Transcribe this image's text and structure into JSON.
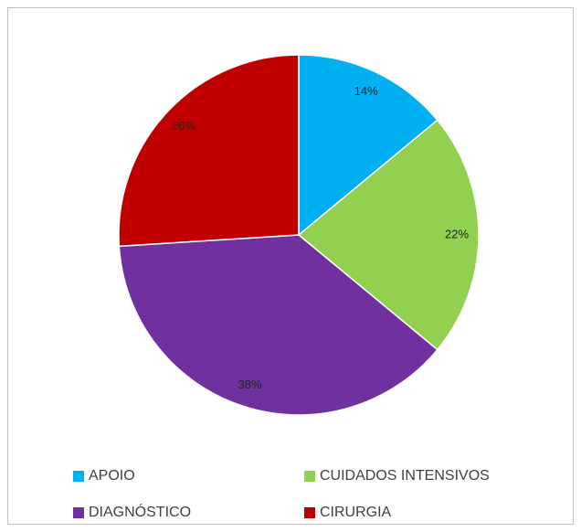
{
  "chart_data": {
    "type": "pie",
    "categories": [
      "APOIO",
      "CUIDADOS INTENSIVOS",
      "DIAGNÓSTICO",
      "CIRURGIA"
    ],
    "values": [
      14,
      22,
      38,
      26
    ],
    "value_labels": [
      "14%",
      "22%",
      "38%",
      "26%"
    ],
    "colors": [
      "#00b0f0",
      "#92d050",
      "#7030a0",
      "#c00000"
    ],
    "legend": "bottom"
  }
}
